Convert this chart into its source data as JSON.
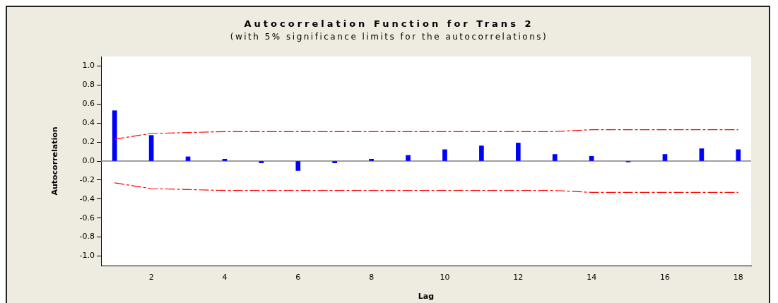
{
  "chart_data": {
    "type": "bar",
    "title": "Autocorrelation Function for Trans 2",
    "subtitle": "(with 5% significance limits for the autocorrelations)",
    "xlabel": "Lag",
    "ylabel": "Autocorrelation",
    "x": [
      1,
      2,
      3,
      4,
      5,
      6,
      7,
      8,
      9,
      10,
      11,
      12,
      13,
      14,
      15,
      16,
      17,
      18
    ],
    "series": [
      {
        "color": "#0000ff",
        "values": [
          0.53,
          0.27,
          0.045,
          0.02,
          -0.02,
          -0.1,
          -0.02,
          0.02,
          0.06,
          0.12,
          0.16,
          0.19,
          0.07,
          0.05,
          -0.01,
          0.07,
          0.13,
          0.12
        ]
      },
      {
        "type": "line",
        "color": "#ff0000",
        "line_style": "dashed",
        "marker": "none",
        "values": [
          0.23,
          0.29,
          0.3,
          0.31,
          0.31,
          0.31,
          0.31,
          0.31,
          0.31,
          0.31,
          0.31,
          0.31,
          0.31,
          0.33,
          0.33,
          0.33,
          0.33,
          0.33
        ]
      },
      {
        "type": "line",
        "color": "#ff0000",
        "line_style": "dashed",
        "marker": "none",
        "values": [
          -0.23,
          -0.29,
          -0.3,
          -0.31,
          -0.31,
          -0.31,
          -0.31,
          -0.31,
          -0.31,
          -0.31,
          -0.31,
          -0.31,
          -0.31,
          -0.33,
          -0.33,
          -0.33,
          -0.33,
          -0.33
        ]
      }
    ],
    "xlim": [
      0.63,
      18.35
    ],
    "xticks": [
      2,
      4,
      6,
      8,
      10,
      12,
      14,
      16,
      18
    ],
    "ylim": [
      -1.1,
      1.1
    ],
    "yticks": [
      {
        "value": -1,
        "label": "-1.0"
      },
      {
        "value": -0.8,
        "label": "-0.8"
      },
      {
        "value": -0.6,
        "label": "-0.6"
      },
      {
        "value": -0.4,
        "label": "-0.4"
      },
      {
        "value": -0.2,
        "label": "-0.2"
      },
      {
        "value": 0,
        "label": "0.0"
      },
      {
        "value": 0.2,
        "label": "0.2"
      },
      {
        "value": 0.4,
        "label": "0.4"
      },
      {
        "value": 0.6,
        "label": "0.6"
      },
      {
        "value": 0.8,
        "label": "0.8"
      },
      {
        "value": 1,
        "label": "1.0"
      }
    ],
    "ref_lines": [
      {
        "axis": "y",
        "value": 0,
        "color": "#808080"
      }
    ]
  }
}
